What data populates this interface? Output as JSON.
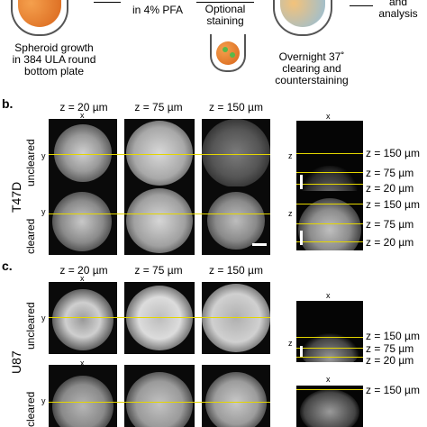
{
  "workflow": {
    "step1_label": "Spheroid growth\nin 384 ULA round\nbottom plate",
    "step2_label": "in 4% PFA",
    "step3_label": "Optional\nstaining",
    "step4_label": "Overnight 37˚\nclearing and\ncounterstaining",
    "step5_label": "and\nanalysis"
  },
  "panel_b": {
    "letter": "b.",
    "cell_line": "T47D",
    "columns": [
      "z = 20 µm",
      "z = 75 µm",
      "z = 150 µm"
    ],
    "rows": [
      "uncleared",
      "cleared"
    ],
    "axis_x": "x",
    "axis_y": "y",
    "axis_z": "z",
    "xz_labels": [
      "z = 150 µm",
      "z = 75 µm",
      "z = 20 µm"
    ]
  },
  "panel_c": {
    "letter": "c.",
    "cell_line": "U87",
    "columns": [
      "z = 20 µm",
      "z = 75 µm",
      "z = 150 µm"
    ],
    "rows": [
      "uncleared",
      "cleared"
    ],
    "axis_x": "x",
    "axis_y": "y",
    "axis_z": "z",
    "xz_labels": [
      "z = 150 µm",
      "z = 75 µm",
      "z = 20 µm"
    ]
  },
  "colors": {
    "guide_line": "#e4d600",
    "spheroid_orange": "#e8791f",
    "spheroid_blue": "#5aa8d8"
  }
}
